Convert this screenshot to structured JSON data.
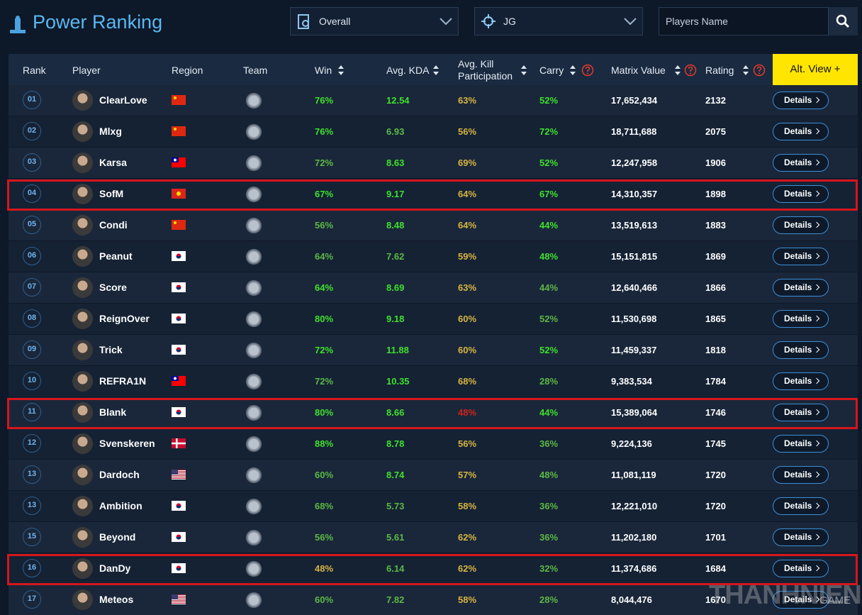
{
  "header": {
    "title": "Power Ranking",
    "filter_scope": "Overall",
    "filter_position": "JG",
    "search_placeholder": "Players Name"
  },
  "table": {
    "columns": [
      "Rank",
      "Player",
      "Region",
      "Team",
      "Win",
      "Avg. KDA",
      "Avg. Kill Participation",
      "Carry",
      "Matrix Value",
      "Rating"
    ],
    "alt_view": "Alt. View +",
    "details_label": "Details",
    "rows": [
      [
        "01",
        "ClearLove",
        "76%",
        "12.54",
        "63%",
        "52%",
        "17,652,434",
        "2132"
      ],
      [
        "02",
        "Mlxg",
        "76%",
        "6.93",
        "56%",
        "72%",
        "18,711,688",
        "2075"
      ],
      [
        "03",
        "Karsa",
        "72%",
        "8.63",
        "69%",
        "52%",
        "12,247,958",
        "1906"
      ],
      [
        "04",
        "SofM",
        "67%",
        "9.17",
        "64%",
        "67%",
        "14,310,357",
        "1898"
      ],
      [
        "05",
        "Condi",
        "56%",
        "8.48",
        "64%",
        "44%",
        "13,519,613",
        "1883"
      ],
      [
        "06",
        "Peanut",
        "64%",
        "7.62",
        "59%",
        "48%",
        "15,151,815",
        "1869"
      ],
      [
        "07",
        "Score",
        "64%",
        "8.69",
        "63%",
        "44%",
        "12,640,466",
        "1866"
      ],
      [
        "08",
        "ReignOver",
        "80%",
        "9.18",
        "60%",
        "52%",
        "11,530,698",
        "1865"
      ],
      [
        "09",
        "Trick",
        "72%",
        "11.88",
        "60%",
        "52%",
        "11,459,337",
        "1818"
      ],
      [
        "10",
        "REFRA1N",
        "72%",
        "10.35",
        "68%",
        "28%",
        "9,383,534",
        "1784"
      ],
      [
        "11",
        "Blank",
        "80%",
        "8.66",
        "48%",
        "44%",
        "15,389,064",
        "1746"
      ],
      [
        "12",
        "Svenskeren",
        "88%",
        "8.78",
        "56%",
        "36%",
        "9,224,136",
        "1745"
      ],
      [
        "13",
        "Dardoch",
        "60%",
        "8.74",
        "57%",
        "48%",
        "11,081,119",
        "1720"
      ],
      [
        "13",
        "Ambition",
        "68%",
        "5.73",
        "58%",
        "36%",
        "12,221,010",
        "1720"
      ],
      [
        "15",
        "Beyond",
        "56%",
        "5.61",
        "62%",
        "36%",
        "11,202,180",
        "1701"
      ],
      [
        "16",
        "DanDy",
        "48%",
        "6.14",
        "62%",
        "32%",
        "11,374,686",
        "1684"
      ],
      [
        "17",
        "Meteos",
        "60%",
        "7.82",
        "58%",
        "28%",
        "8,044,476",
        "1670"
      ]
    ]
  },
  "watermark": {
    "brand": "THANHNIEN",
    "section": "GAME"
  }
}
